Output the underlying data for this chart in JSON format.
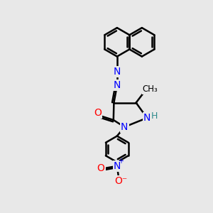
{
  "bg_color": "#e8e8e8",
  "bond_color": "#000000",
  "bond_width": 1.8,
  "atom_colors": {
    "N": "#0000ff",
    "O": "#ff0000",
    "H": "#2e8b8b",
    "C": "#000000"
  },
  "font_size": 9
}
